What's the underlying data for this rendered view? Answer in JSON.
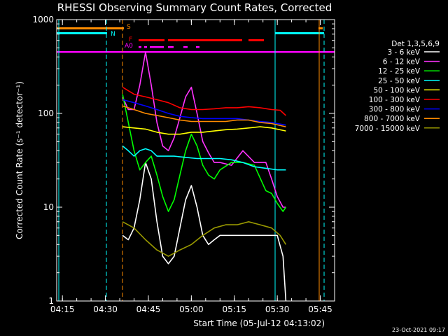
{
  "chart_data": {
    "type": "line",
    "title": "RHESSI Observing Summary Count Rates, Corrected",
    "xlabel": "Start Time (05-Jul-12 04:13:02)",
    "ylabel": "Corrected Count Rate (s⁻¹ detector⁻¹)",
    "y_scale": "log",
    "ylim": [
      1,
      1000
    ],
    "xlim": [
      "04:13",
      "05:50"
    ],
    "x_ticks": [
      "04:15",
      "04:30",
      "04:45",
      "05:00",
      "05:15",
      "05:30",
      "05:45"
    ],
    "y_ticks": [
      "1",
      "10",
      "100",
      "1000"
    ],
    "legend_header": "Det 1,3,5,6,9",
    "legend_position": "right",
    "timestamp": "23-Oct-2021 09:17",
    "flag_labels": {
      "saa": "S",
      "night": "N",
      "flare": "F",
      "attenuator": "A0"
    },
    "series": [
      {
        "name": "3 - 6 keV",
        "color": "#ffffff",
        "points": [
          [
            "04:36",
            5
          ],
          [
            "04:38",
            4.5
          ],
          [
            "04:40",
            6
          ],
          [
            "04:42",
            12
          ],
          [
            "04:44",
            30
          ],
          [
            "04:46",
            20
          ],
          [
            "04:48",
            7
          ],
          [
            "04:50",
            3
          ],
          [
            "04:52",
            2.5
          ],
          [
            "04:54",
            3
          ],
          [
            "04:56",
            6
          ],
          [
            "04:58",
            12
          ],
          [
            "05:00",
            17
          ],
          [
            "05:02",
            10
          ],
          [
            "05:04",
            5
          ],
          [
            "05:06",
            4
          ],
          [
            "05:08",
            4.5
          ],
          [
            "05:10",
            5
          ],
          [
            "05:14",
            5
          ],
          [
            "05:18",
            5
          ],
          [
            "05:22",
            5
          ],
          [
            "05:26",
            5
          ],
          [
            "05:30",
            5
          ],
          [
            "05:32",
            3
          ],
          [
            "05:33",
            1
          ]
        ]
      },
      {
        "name": "6 - 12 keV",
        "color": "#ff33ff",
        "points": [
          [
            "04:36",
            150
          ],
          [
            "04:38",
            110
          ],
          [
            "04:40",
            110
          ],
          [
            "04:42",
            200
          ],
          [
            "04:44",
            450
          ],
          [
            "04:46",
            200
          ],
          [
            "04:48",
            80
          ],
          [
            "04:50",
            45
          ],
          [
            "04:52",
            40
          ],
          [
            "04:54",
            55
          ],
          [
            "04:56",
            90
          ],
          [
            "04:58",
            150
          ],
          [
            "05:00",
            190
          ],
          [
            "05:02",
            100
          ],
          [
            "05:04",
            50
          ],
          [
            "05:06",
            38
          ],
          [
            "05:08",
            30
          ],
          [
            "05:10",
            30
          ],
          [
            "05:14",
            28
          ],
          [
            "05:18",
            40
          ],
          [
            "05:22",
            30
          ],
          [
            "05:26",
            30
          ],
          [
            "05:28",
            20
          ],
          [
            "05:30",
            13
          ],
          [
            "05:32",
            10
          ],
          [
            "05:33",
            10
          ]
        ]
      },
      {
        "name": "12 - 25 keV",
        "color": "#00ff00",
        "points": [
          [
            "04:36",
            160
          ],
          [
            "04:38",
            80
          ],
          [
            "04:40",
            40
          ],
          [
            "04:42",
            25
          ],
          [
            "04:44",
            30
          ],
          [
            "04:46",
            35
          ],
          [
            "04:48",
            22
          ],
          [
            "04:50",
            13
          ],
          [
            "04:52",
            9
          ],
          [
            "04:54",
            12
          ],
          [
            "04:56",
            22
          ],
          [
            "04:58",
            40
          ],
          [
            "05:00",
            60
          ],
          [
            "05:02",
            45
          ],
          [
            "05:04",
            28
          ],
          [
            "05:06",
            22
          ],
          [
            "05:08",
            20
          ],
          [
            "05:10",
            25
          ],
          [
            "05:14",
            30
          ],
          [
            "05:18",
            30
          ],
          [
            "05:22",
            28
          ],
          [
            "05:26",
            15
          ],
          [
            "05:28",
            14
          ],
          [
            "05:30",
            11
          ],
          [
            "05:32",
            9
          ],
          [
            "05:33",
            10
          ]
        ]
      },
      {
        "name": "25 - 50 keV",
        "color": "#00ffff",
        "points": [
          [
            "04:36",
            45
          ],
          [
            "04:38",
            40
          ],
          [
            "04:40",
            35
          ],
          [
            "04:42",
            40
          ],
          [
            "04:44",
            42
          ],
          [
            "04:46",
            40
          ],
          [
            "04:48",
            35
          ],
          [
            "04:50",
            35
          ],
          [
            "04:54",
            35
          ],
          [
            "04:58",
            34
          ],
          [
            "05:02",
            33
          ],
          [
            "05:06",
            33
          ],
          [
            "05:10",
            33
          ],
          [
            "05:14",
            32
          ],
          [
            "05:18",
            30
          ],
          [
            "05:22",
            27
          ],
          [
            "05:26",
            26
          ],
          [
            "05:30",
            25
          ],
          [
            "05:33",
            25
          ]
        ]
      },
      {
        "name": "50 - 100 keV",
        "color": "#ffff00",
        "points": [
          [
            "04:36",
            72
          ],
          [
            "04:40",
            70
          ],
          [
            "04:44",
            68
          ],
          [
            "04:48",
            63
          ],
          [
            "04:52",
            60
          ],
          [
            "04:56",
            60
          ],
          [
            "05:00",
            63
          ],
          [
            "05:04",
            63
          ],
          [
            "05:08",
            65
          ],
          [
            "05:12",
            67
          ],
          [
            "05:16",
            68
          ],
          [
            "05:20",
            70
          ],
          [
            "05:24",
            72
          ],
          [
            "05:28",
            70
          ],
          [
            "05:33",
            65
          ]
        ]
      },
      {
        "name": "100 - 300 keV",
        "color": "#ff0000",
        "points": [
          [
            "04:36",
            190
          ],
          [
            "04:40",
            160
          ],
          [
            "04:44",
            150
          ],
          [
            "04:48",
            140
          ],
          [
            "04:52",
            130
          ],
          [
            "04:56",
            115
          ],
          [
            "05:00",
            110
          ],
          [
            "05:04",
            110
          ],
          [
            "05:08",
            112
          ],
          [
            "05:12",
            115
          ],
          [
            "05:16",
            115
          ],
          [
            "05:20",
            118
          ],
          [
            "05:24",
            115
          ],
          [
            "05:28",
            110
          ],
          [
            "05:31",
            108
          ],
          [
            "05:33",
            95
          ]
        ]
      },
      {
        "name": "300 - 800 keV",
        "color": "#0000ff",
        "points": [
          [
            "04:36",
            140
          ],
          [
            "04:40",
            130
          ],
          [
            "04:44",
            120
          ],
          [
            "04:48",
            110
          ],
          [
            "04:52",
            100
          ],
          [
            "04:56",
            93
          ],
          [
            "05:00",
            90
          ],
          [
            "05:04",
            88
          ],
          [
            "05:08",
            88
          ],
          [
            "05:12",
            88
          ],
          [
            "05:16",
            88
          ],
          [
            "05:20",
            85
          ],
          [
            "05:24",
            82
          ],
          [
            "05:28",
            80
          ],
          [
            "05:33",
            75
          ]
        ]
      },
      {
        "name": "800 - 7000 keV",
        "color": "#ff8c00",
        "points": [
          [
            "04:36",
            120
          ],
          [
            "04:40",
            110
          ],
          [
            "04:44",
            100
          ],
          [
            "04:48",
            95
          ],
          [
            "04:52",
            90
          ],
          [
            "04:56",
            85
          ],
          [
            "05:00",
            82
          ],
          [
            "05:04",
            82
          ],
          [
            "05:08",
            82
          ],
          [
            "05:12",
            82
          ],
          [
            "05:16",
            85
          ],
          [
            "05:20",
            85
          ],
          [
            "05:24",
            80
          ],
          [
            "05:28",
            78
          ],
          [
            "05:33",
            72
          ]
        ]
      },
      {
        "name": "7000 - 15000 keV",
        "color": "#999900",
        "points": [
          [
            "04:36",
            7
          ],
          [
            "04:40",
            6
          ],
          [
            "04:44",
            4.5
          ],
          [
            "04:48",
            3.5
          ],
          [
            "04:52",
            3
          ],
          [
            "04:56",
            3.5
          ],
          [
            "05:00",
            4
          ],
          [
            "05:04",
            5
          ],
          [
            "05:08",
            6
          ],
          [
            "05:12",
            6.5
          ],
          [
            "05:16",
            6.5
          ],
          [
            "05:20",
            7
          ],
          [
            "05:24",
            6.5
          ],
          [
            "05:28",
            6
          ],
          [
            "05:31",
            5
          ],
          [
            "05:33",
            4
          ]
        ]
      }
    ]
  }
}
